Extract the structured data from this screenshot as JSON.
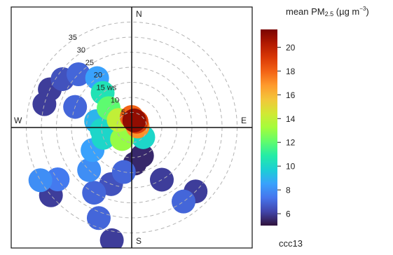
{
  "chart_data": {
    "type": "polar-plot",
    "variable": "mean PM2.5",
    "panel_label": "ccc13",
    "legend": {
      "title_main": "mean PM",
      "title_sub": "2.5",
      "title_unit_open": " (µg m",
      "title_unit_sup": "−3",
      "title_unit_close": ")",
      "ticks": [
        6,
        8,
        10,
        12,
        14,
        16,
        18,
        20
      ],
      "range": [
        5,
        21.5
      ],
      "colors": [
        "#30123b",
        "#4145ab",
        "#4675ed",
        "#39a2fc",
        "#1bcfd4",
        "#24eca6",
        "#61fc6c",
        "#a4fc3b",
        "#d1e834",
        "#f3c63a",
        "#fe9b2d",
        "#f36315",
        "#d93806",
        "#b11901",
        "#7a0402"
      ]
    },
    "compass": {
      "north": "N",
      "south": "S",
      "east": "E",
      "west": "W"
    },
    "radial_axis": {
      "label": "ws",
      "ticks": [
        5,
        10,
        15,
        20,
        25,
        30,
        35
      ],
      "labels": [
        "5",
        "10",
        "15",
        "20",
        "25",
        "30",
        "35"
      ],
      "max": 40
    },
    "blobs": [
      {
        "angle_deg": 20,
        "ws": 2.5,
        "value": 21
      },
      {
        "angle_deg": 40,
        "ws": 2.5,
        "value": 19
      },
      {
        "angle_deg": 80,
        "ws": 2.0,
        "value": 17
      },
      {
        "angle_deg": 0,
        "ws": 3.5,
        "value": 18
      },
      {
        "angle_deg": 300,
        "ws": 5,
        "value": 14
      },
      {
        "angle_deg": 310,
        "ws": 10,
        "value": 12
      },
      {
        "angle_deg": 320,
        "ws": 15,
        "value": 10.5
      },
      {
        "angle_deg": 325,
        "ws": 20,
        "value": 8.5
      },
      {
        "angle_deg": 315,
        "ws": 25,
        "value": 7
      },
      {
        "angle_deg": 305,
        "ws": 28,
        "value": 6.5
      },
      {
        "angle_deg": 295,
        "ws": 30,
        "value": 6
      },
      {
        "angle_deg": 285,
        "ws": 30,
        "value": 6
      },
      {
        "angle_deg": 290,
        "ws": 20,
        "value": 7
      },
      {
        "angle_deg": 280,
        "ws": 12,
        "value": 9
      },
      {
        "angle_deg": 265,
        "ws": 10,
        "value": 10
      },
      {
        "angle_deg": 250,
        "ws": 10,
        "value": 10
      },
      {
        "angle_deg": 240,
        "ws": 15,
        "value": 8.5
      },
      {
        "angle_deg": 225,
        "ws": 20,
        "value": 8
      },
      {
        "angle_deg": 235,
        "ws": 30,
        "value": 7.5
      },
      {
        "angle_deg": 240,
        "ws": 35,
        "value": 8
      },
      {
        "angle_deg": 230,
        "ws": 35,
        "value": 6
      },
      {
        "angle_deg": 210,
        "ws": 25,
        "value": 7
      },
      {
        "angle_deg": 200,
        "ws": 20,
        "value": 6.5
      },
      {
        "angle_deg": 190,
        "ws": 15,
        "value": 7
      },
      {
        "angle_deg": 175,
        "ws": 12,
        "value": 5.5
      },
      {
        "angle_deg": 160,
        "ws": 10,
        "value": 5.5
      },
      {
        "angle_deg": 150,
        "ws": 20,
        "value": 6
      },
      {
        "angle_deg": 135,
        "ws": 30,
        "value": 6
      },
      {
        "angle_deg": 145,
        "ws": 30,
        "value": 7
      },
      {
        "angle_deg": 200,
        "ws": 32,
        "value": 7
      },
      {
        "angle_deg": 190,
        "ws": 38,
        "value": 6
      },
      {
        "angle_deg": 130,
        "ws": 5,
        "value": 10
      },
      {
        "angle_deg": 220,
        "ws": 5,
        "value": 13
      }
    ]
  }
}
